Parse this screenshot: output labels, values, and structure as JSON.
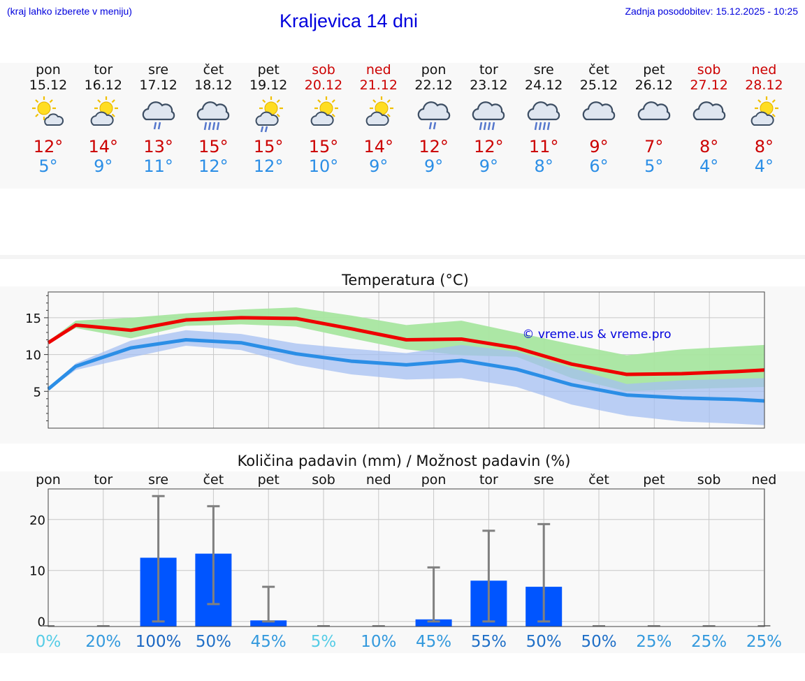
{
  "header": {
    "hint": "(kraj lahko izberete v meniju)",
    "title": "Kraljevica 14 dni",
    "updated": "Zadnja posodobitev: 15.12.2025 - 10:25"
  },
  "days": [
    {
      "name": "pon",
      "date": "15.12",
      "weekend": false,
      "icon": "partly-sunny-icon",
      "max": "12°",
      "min": "5°"
    },
    {
      "name": "tor",
      "date": "16.12",
      "weekend": false,
      "icon": "sun-cloud-icon",
      "max": "14°",
      "min": "9°"
    },
    {
      "name": "sre",
      "date": "17.12",
      "weekend": false,
      "icon": "cloud-rain-icon",
      "max": "13°",
      "min": "11°"
    },
    {
      "name": "čet",
      "date": "18.12",
      "weekend": false,
      "icon": "cloud-heavy-rain-icon",
      "max": "15°",
      "min": "12°"
    },
    {
      "name": "pet",
      "date": "19.12",
      "weekend": false,
      "icon": "sun-cloud-rain-icon",
      "max": "15°",
      "min": "12°"
    },
    {
      "name": "sob",
      "date": "20.12",
      "weekend": true,
      "icon": "sun-cloud-icon",
      "max": "15°",
      "min": "10°"
    },
    {
      "name": "ned",
      "date": "21.12",
      "weekend": true,
      "icon": "sun-cloud-icon",
      "max": "14°",
      "min": "9°"
    },
    {
      "name": "pon",
      "date": "22.12",
      "weekend": false,
      "icon": "cloud-rain-icon",
      "max": "12°",
      "min": "9°"
    },
    {
      "name": "tor",
      "date": "23.12",
      "weekend": false,
      "icon": "cloud-heavy-rain-icon",
      "max": "12°",
      "min": "9°"
    },
    {
      "name": "sre",
      "date": "24.12",
      "weekend": false,
      "icon": "cloud-heavy-rain-icon",
      "max": "11°",
      "min": "8°"
    },
    {
      "name": "čet",
      "date": "25.12",
      "weekend": false,
      "icon": "cloud-icon",
      "max": "9°",
      "min": "6°"
    },
    {
      "name": "pet",
      "date": "26.12",
      "weekend": false,
      "icon": "cloud-icon",
      "max": "7°",
      "min": "5°"
    },
    {
      "name": "sob",
      "date": "27.12",
      "weekend": true,
      "icon": "cloud-icon",
      "max": "8°",
      "min": "4°"
    },
    {
      "name": "ned",
      "date": "28.12",
      "weekend": true,
      "icon": "sun-cloud-icon",
      "max": "8°",
      "min": "4°"
    }
  ],
  "colors": {
    "max_line": "#ee0000",
    "min_line": "#2b8ee6",
    "max_band": "#a8e6a0",
    "min_band": "#a4bff2",
    "bar": "#0055ff",
    "error_bar": "#808080",
    "grid": "#c8c8c8",
    "watermark": "#0000dd"
  },
  "chart_data": [
    {
      "type": "line",
      "title": "Temperatura (°C)",
      "watermark": "© vreme.us & vreme.pro",
      "ylim": [
        0,
        18.5
      ],
      "yticks": [
        5,
        10,
        15
      ],
      "x": [
        0,
        0.5,
        1.5,
        2.5,
        3.5,
        4.5,
        5.5,
        6.5,
        7.5,
        8.5,
        9.5,
        10.5,
        11.5,
        12.5,
        13
      ],
      "series": [
        {
          "name": "max",
          "values": [
            11.6,
            14.0,
            13.3,
            14.7,
            15.0,
            14.9,
            13.5,
            12.0,
            12.1,
            10.9,
            8.7,
            7.3,
            7.4,
            7.7,
            7.9
          ]
        },
        {
          "name": "min",
          "values": [
            5.3,
            8.4,
            10.9,
            12.0,
            11.6,
            10.1,
            9.1,
            8.6,
            9.2,
            8.0,
            5.9,
            4.5,
            4.1,
            3.9,
            3.7
          ]
        },
        {
          "name": "max_band_high",
          "values": [
            11.8,
            14.6,
            15.0,
            15.6,
            16.1,
            16.4,
            15.3,
            14.0,
            14.6,
            13.0,
            11.4,
            9.9,
            10.7,
            11.1,
            11.3
          ]
        },
        {
          "name": "max_band_low",
          "values": [
            11.5,
            13.6,
            12.2,
            13.9,
            14.1,
            13.8,
            12.2,
            10.7,
            9.9,
            9.7,
            6.8,
            5.0,
            5.3,
            5.5,
            5.6
          ]
        },
        {
          "name": "min_band_high",
          "values": [
            5.4,
            8.8,
            11.9,
            13.3,
            12.8,
            11.5,
            10.8,
            10.2,
            11.3,
            10.4,
            8.2,
            6.0,
            6.5,
            6.7,
            6.8
          ]
        },
        {
          "name": "min_band_low",
          "values": [
            5.2,
            7.9,
            9.6,
            11.2,
            10.6,
            8.6,
            7.3,
            6.6,
            6.8,
            5.6,
            3.2,
            1.7,
            0.9,
            0.6,
            0.4
          ]
        }
      ]
    },
    {
      "type": "bar",
      "title": "Količina padavin (mm) / Možnost padavin (%)",
      "categories": [
        "pon",
        "tor",
        "sre",
        "čet",
        "pet",
        "sob",
        "ned",
        "pon",
        "tor",
        "sre",
        "čet",
        "pet",
        "sob",
        "ned"
      ],
      "ylim": [
        -1,
        26
      ],
      "yticks": [
        0,
        10,
        20
      ],
      "values": [
        0,
        0,
        12.5,
        13.3,
        0.2,
        0,
        0,
        0.4,
        8.0,
        6.8,
        0,
        0,
        0,
        0
      ],
      "error_high": [
        0,
        0,
        24.6,
        22.6,
        6.8,
        0,
        0,
        10.6,
        17.8,
        19.1,
        0,
        0,
        0,
        0
      ],
      "error_low": [
        0,
        0,
        0,
        3.4,
        0,
        0,
        0,
        0,
        0,
        0,
        0,
        0,
        0,
        0
      ],
      "probability": [
        "0%",
        "20%",
        "100%",
        "50%",
        "45%",
        "5%",
        "10%",
        "45%",
        "55%",
        "50%",
        "50%",
        "25%",
        "25%",
        "25%"
      ],
      "probability_colors": [
        "#55cce6",
        "#3399dd",
        "#1a66c2",
        "#1f6fc7",
        "#3399dd",
        "#55cce6",
        "#3399dd",
        "#3399dd",
        "#1f6fc7",
        "#1f6fc7",
        "#1f6fc7",
        "#3399dd",
        "#3399dd",
        "#3399dd"
      ]
    }
  ]
}
